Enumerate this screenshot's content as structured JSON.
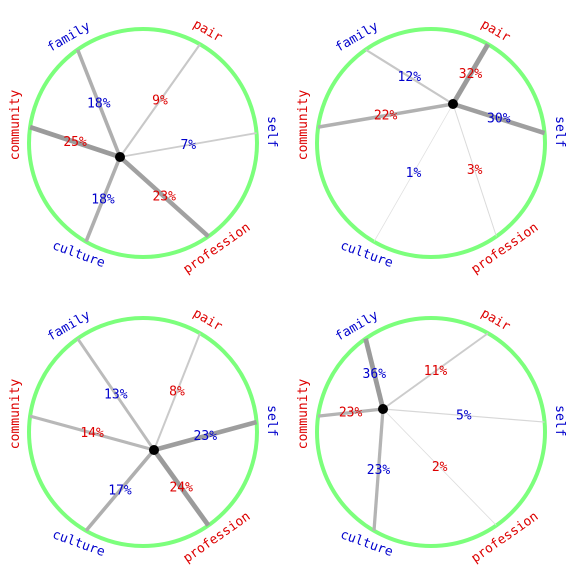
{
  "chart_data": [
    {
      "type": "radial",
      "categories": [
        "self",
        "profession",
        "culture",
        "community",
        "family",
        "pair"
      ],
      "values": [
        7,
        23,
        18,
        25,
        18,
        9
      ],
      "value_unit": "%"
    },
    {
      "type": "radial",
      "categories": [
        "self",
        "profession",
        "culture",
        "community",
        "family",
        "pair"
      ],
      "values": [
        30,
        3,
        1,
        22,
        12,
        32
      ],
      "value_unit": "%"
    },
    {
      "type": "radial",
      "categories": [
        "self",
        "profession",
        "culture",
        "community",
        "family",
        "pair"
      ],
      "values": [
        23,
        24,
        17,
        14,
        13,
        8
      ],
      "value_unit": "%"
    },
    {
      "type": "radial",
      "categories": [
        "self",
        "profession",
        "culture",
        "community",
        "family",
        "pair"
      ],
      "values": [
        5,
        2,
        23,
        23,
        36,
        11
      ],
      "value_unit": "%"
    }
  ],
  "colors": {
    "ring": "#7cff7c",
    "spoke": "#aaaaaa",
    "hub": "#000000",
    "label_blue": "#0000cc",
    "label_red": "#dd0000"
  },
  "category_colors": [
    "#0000cc",
    "#dd0000",
    "#0000cc",
    "#dd0000",
    "#0000cc",
    "#dd0000"
  ]
}
